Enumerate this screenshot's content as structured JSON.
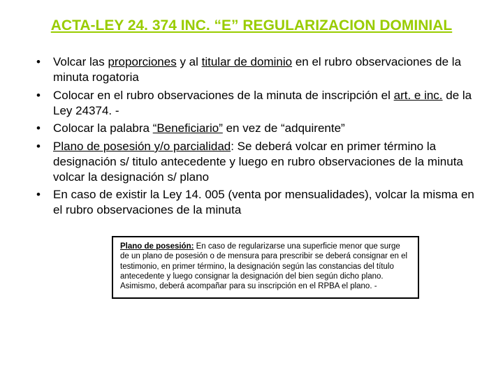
{
  "title_color": "#99cc00",
  "title": "ACTA-LEY 24. 374  INC. “E” REGULARIZACION DOMINIAL",
  "bullets": [
    {
      "pre": "Volcar las ",
      "u1": "proporciones",
      "mid1": " y al ",
      "u2": "titular de dominio",
      "post": " en el rubro observaciones de la minuta rogatoria"
    },
    {
      "pre": "Colocar en el rubro observaciones de la minuta de inscripción el ",
      "u1": "art. e inc.",
      "post": " de la Ley 24374. -"
    },
    {
      "pre": "Colocar la palabra ",
      "u1": "“Beneficiario”",
      "post": " en vez de “adquirente”"
    },
    {
      "u1": "Plano de posesión y/o parcialidad",
      "post": ": Se deberá volcar en primer término la designación s/ titulo antecedente y luego en rubro observaciones de la minuta volcar la designación s/ plano"
    },
    {
      "pre": "En caso de existir la Ley 14. 005 (venta por mensualidades), volcar la misma en el rubro observaciones de la minuta"
    }
  ],
  "note": {
    "lead": "Plano de posesión:",
    "body": " En caso de regularizarse una superficie menor que surge de un plano de posesión o de mensura para prescribir se deberá consignar  en el testimonio, en primer término, la designación según las constancias del título antecedente y luego consignar la designación del bien según dicho plano. Asimismo, deberá acompañar para su inscripción en el RPBA el plano. -"
  }
}
